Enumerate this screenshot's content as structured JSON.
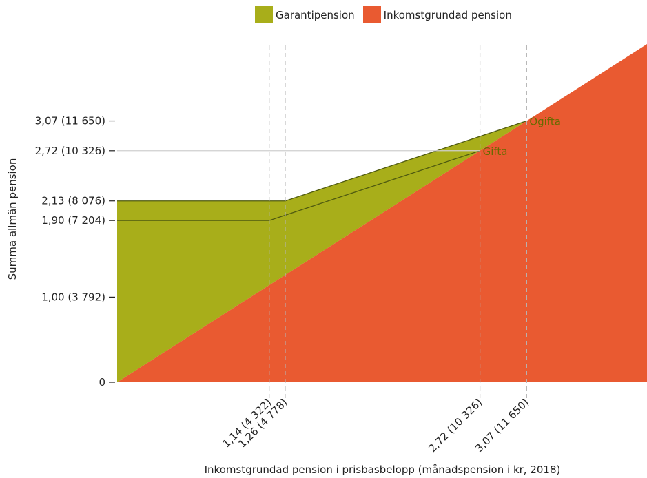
{
  "chart_data": {
    "type": "area",
    "xlabel": "Inkomstgrundad pension i prisbasbelopp (månadspension i kr, 2018)",
    "ylabel": "Summa allmän pension",
    "xlim": [
      0,
      4.3
    ],
    "ylim": [
      0,
      4.3
    ],
    "legend_position": "top-center",
    "series": [
      {
        "name": "Garantipension",
        "color": "#a8ae1a"
      },
      {
        "name": "Inkomstgrundad pension",
        "color": "#e95a31"
      }
    ],
    "lines": [
      {
        "name": "Ogifta",
        "x": [
          0,
          1.26,
          3.07
        ],
        "y": [
          2.13,
          2.13,
          3.07
        ]
      },
      {
        "name": "Gifta",
        "x": [
          0,
          1.14,
          2.72
        ],
        "y": [
          1.9,
          1.9,
          2.72
        ]
      }
    ],
    "y_ticks": [
      {
        "value": 0,
        "label": "0"
      },
      {
        "value": 1.0,
        "label": "1,00 (3 792)"
      },
      {
        "value": 1.9,
        "label": "1,90 (7 204)"
      },
      {
        "value": 2.13,
        "label": "2,13 (8 076)"
      },
      {
        "value": 2.72,
        "label": "2,72 (10 326)"
      },
      {
        "value": 3.07,
        "label": "3,07 (11 650)"
      }
    ],
    "x_ticks": [
      {
        "value": 1.14,
        "label": "1,14 (4 322)"
      },
      {
        "value": 1.26,
        "label": "1,26 (4 778)"
      },
      {
        "value": 2.72,
        "label": "2,72 (10 326)"
      },
      {
        "value": 3.07,
        "label": "3,07 (11 650)"
      }
    ],
    "annotations": [
      {
        "text": "Ogifta",
        "x": 3.07,
        "y": 3.07
      },
      {
        "text": "Gifta",
        "x": 2.72,
        "y": 2.72
      }
    ]
  },
  "legend": {
    "items": [
      {
        "label": "Garantipension",
        "color": "#a8ae1a"
      },
      {
        "label": "Inkomstgrundad pension",
        "color": "#e95a31"
      }
    ]
  }
}
